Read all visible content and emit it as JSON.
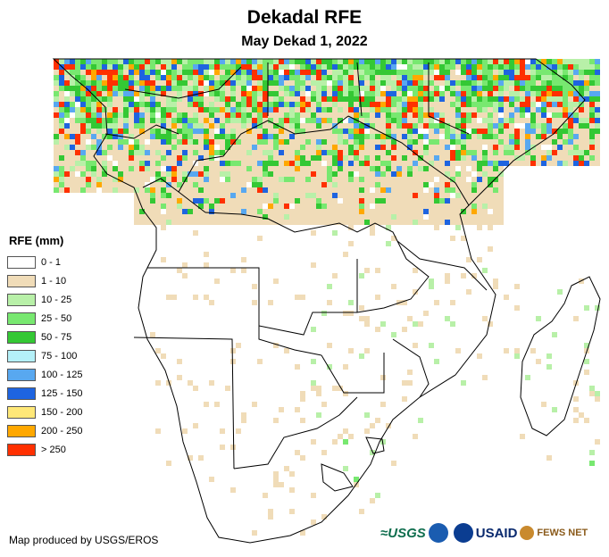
{
  "title": "Dekadal RFE",
  "subtitle": "May Dekad 1, 2022",
  "legend": {
    "title": "RFE (mm)",
    "classes": [
      {
        "label": "0 - 1",
        "color": "#ffffff"
      },
      {
        "label": "1 - 10",
        "color": "#f0dcb8"
      },
      {
        "label": "10 - 25",
        "color": "#b8f0a8"
      },
      {
        "label": "25 - 50",
        "color": "#78e870"
      },
      {
        "label": "50 - 75",
        "color": "#34c834"
      },
      {
        "label": "75 - 100",
        "color": "#b4f0f8"
      },
      {
        "label": "100 - 125",
        "color": "#58a8f0"
      },
      {
        "label": "125 - 150",
        "color": "#1e64e0"
      },
      {
        "label": "150 - 200",
        "color": "#ffe878"
      },
      {
        "label": "200 - 250",
        "color": "#ffa800"
      },
      {
        "label": "> 250",
        "color": "#ff3000"
      }
    ]
  },
  "credit": "Map produced by USGS/EROS",
  "logos": {
    "usgs": "≈USGS",
    "usaid": "USAID",
    "fews": "FEWS NET"
  },
  "colors": {
    "land": "#ffffff",
    "border": "#000000"
  }
}
